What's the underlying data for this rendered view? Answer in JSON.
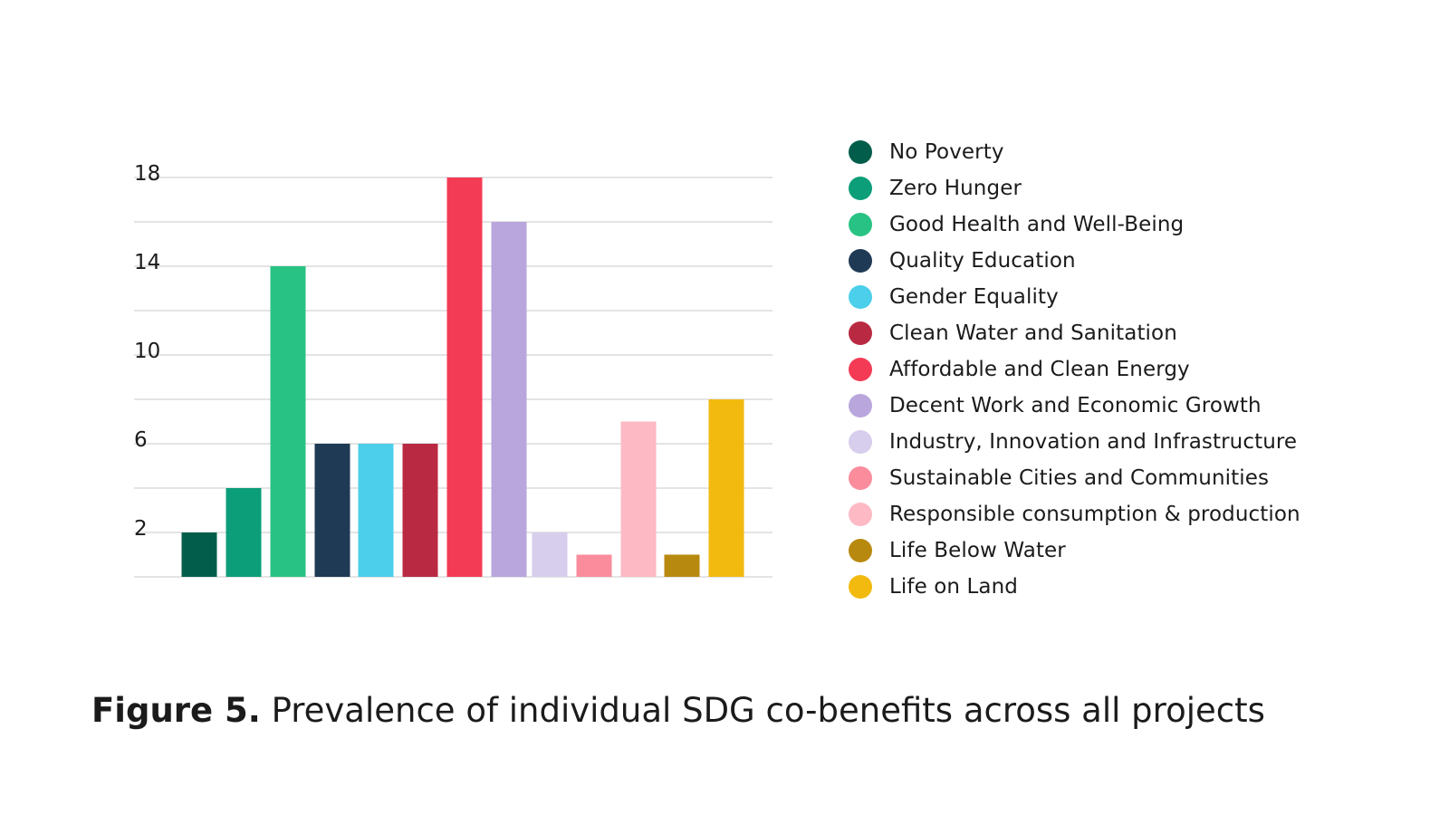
{
  "chart_data": {
    "type": "bar",
    "title": "",
    "xlabel": "",
    "ylabel": "",
    "ylim": [
      0,
      18
    ],
    "yticks": [
      2,
      6,
      10,
      14,
      18
    ],
    "grid": true,
    "legend_position": "right",
    "categories": [
      "No Poverty",
      "Zero Hunger",
      "Good Health and Well-Being",
      "Quality Education",
      "Gender Equality",
      "Clean Water and Sanitation",
      "Affordable and Clean Energy",
      "Decent Work and Economic Growth",
      "Industry, Innovation and Infrastructure",
      "Sustainable Cities and Communities",
      "Responsible consumption & production",
      "Life Below Water",
      "Life on Land"
    ],
    "values": [
      2,
      4,
      14,
      6,
      6,
      6,
      18,
      16,
      2,
      1,
      7,
      1,
      8
    ],
    "colors": [
      "#025e4a",
      "#0b9e79",
      "#28c384",
      "#1f3a55",
      "#4bcfea",
      "#b92a42",
      "#f43b55",
      "#b8a6dc",
      "#d7cdec",
      "#fa8c9c",
      "#fdb9c4",
      "#b8890f",
      "#f2b90f"
    ]
  },
  "caption": {
    "label": "Figure 5.",
    "text": " Prevalence of individual SDG co-benefits across all projects"
  }
}
